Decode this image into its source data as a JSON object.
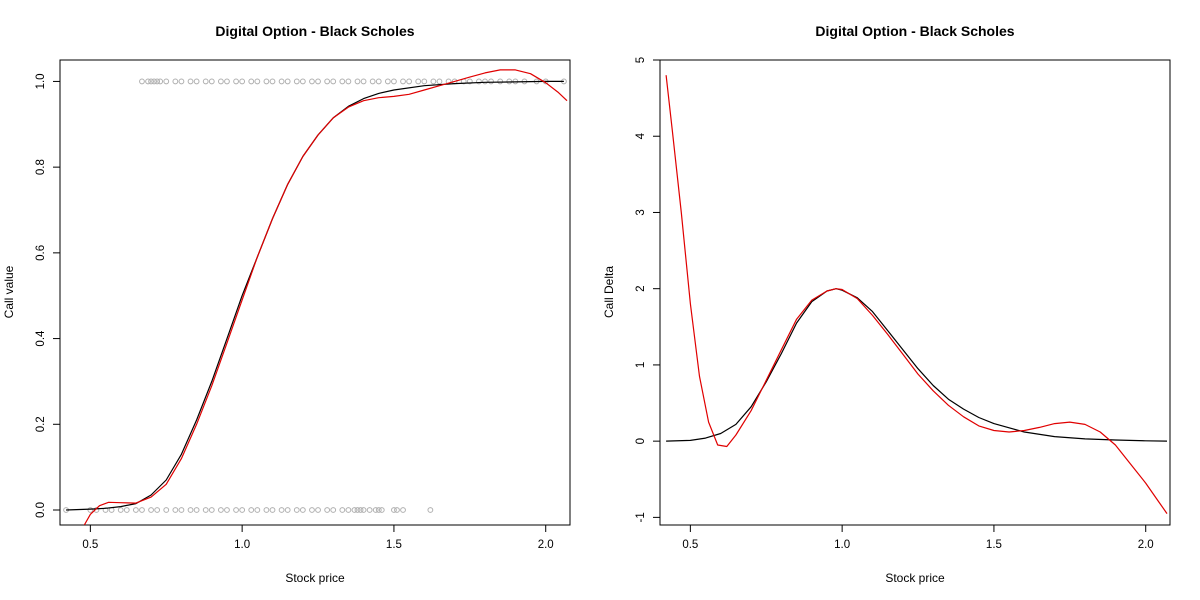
{
  "chart_data": [
    {
      "type": "scatter",
      "title": "Digital Option - Black Scholes",
      "xlabel": "Stock price",
      "ylabel": "Call value",
      "xlim": [
        0.4,
        2.08
      ],
      "ylim": [
        -0.035,
        1.05
      ],
      "xticks": [
        0.5,
        1.0,
        1.5,
        2.0
      ],
      "xtick_labels": [
        "0.5",
        "1.0",
        "1.5",
        "2.0"
      ],
      "yticks": [
        0.0,
        0.2,
        0.4,
        0.6,
        0.8,
        1.0
      ],
      "ytick_labels": [
        "0.0",
        "0.2",
        "0.4",
        "0.6",
        "0.8",
        "1.0"
      ],
      "grid": false,
      "colors": {
        "points": "#b0b0b0",
        "exact": "#000000",
        "fit": "#e00000"
      },
      "series": [
        {
          "kind": "points",
          "values": [
            [
              0.42,
              0
            ],
            [
              0.5,
              0
            ],
            [
              0.52,
              0
            ],
            [
              0.55,
              0
            ],
            [
              0.57,
              0
            ],
            [
              0.6,
              0
            ],
            [
              0.62,
              0
            ],
            [
              0.65,
              0
            ],
            [
              0.67,
              0
            ],
            [
              0.7,
              0
            ],
            [
              0.72,
              0
            ],
            [
              0.75,
              0
            ],
            [
              0.78,
              0
            ],
            [
              0.8,
              0
            ],
            [
              0.83,
              0
            ],
            [
              0.85,
              0
            ],
            [
              0.88,
              0
            ],
            [
              0.9,
              0
            ],
            [
              0.93,
              0
            ],
            [
              0.95,
              0
            ],
            [
              0.98,
              0
            ],
            [
              1.0,
              0
            ],
            [
              1.03,
              0
            ],
            [
              1.05,
              0
            ],
            [
              1.08,
              0
            ],
            [
              1.1,
              0
            ],
            [
              1.13,
              0
            ],
            [
              1.15,
              0
            ],
            [
              1.18,
              0
            ],
            [
              1.2,
              0
            ],
            [
              1.23,
              0
            ],
            [
              1.25,
              0
            ],
            [
              1.28,
              0
            ],
            [
              1.3,
              0
            ],
            [
              1.33,
              0
            ],
            [
              1.35,
              0
            ],
            [
              1.37,
              0
            ],
            [
              1.38,
              0
            ],
            [
              1.39,
              0
            ],
            [
              1.4,
              0
            ],
            [
              1.42,
              0
            ],
            [
              1.44,
              0
            ],
            [
              1.45,
              0
            ],
            [
              1.46,
              0
            ],
            [
              1.5,
              0
            ],
            [
              1.51,
              0
            ],
            [
              1.53,
              0
            ],
            [
              1.62,
              0
            ],
            [
              0.67,
              1
            ],
            [
              0.69,
              1
            ],
            [
              0.7,
              1
            ],
            [
              0.71,
              1
            ],
            [
              0.72,
              1
            ],
            [
              0.73,
              1
            ],
            [
              0.75,
              1
            ],
            [
              0.78,
              1
            ],
            [
              0.8,
              1
            ],
            [
              0.83,
              1
            ],
            [
              0.85,
              1
            ],
            [
              0.88,
              1
            ],
            [
              0.9,
              1
            ],
            [
              0.93,
              1
            ],
            [
              0.95,
              1
            ],
            [
              0.98,
              1
            ],
            [
              1.0,
              1
            ],
            [
              1.03,
              1
            ],
            [
              1.05,
              1
            ],
            [
              1.08,
              1
            ],
            [
              1.1,
              1
            ],
            [
              1.13,
              1
            ],
            [
              1.15,
              1
            ],
            [
              1.18,
              1
            ],
            [
              1.2,
              1
            ],
            [
              1.23,
              1
            ],
            [
              1.25,
              1
            ],
            [
              1.28,
              1
            ],
            [
              1.3,
              1
            ],
            [
              1.33,
              1
            ],
            [
              1.35,
              1
            ],
            [
              1.38,
              1
            ],
            [
              1.4,
              1
            ],
            [
              1.43,
              1
            ],
            [
              1.45,
              1
            ],
            [
              1.48,
              1
            ],
            [
              1.5,
              1
            ],
            [
              1.53,
              1
            ],
            [
              1.55,
              1
            ],
            [
              1.58,
              1
            ],
            [
              1.6,
              1
            ],
            [
              1.63,
              1
            ],
            [
              1.65,
              1
            ],
            [
              1.68,
              1
            ],
            [
              1.7,
              1
            ],
            [
              1.73,
              1
            ],
            [
              1.75,
              1
            ],
            [
              1.78,
              1
            ],
            [
              1.8,
              1
            ],
            [
              1.82,
              1
            ],
            [
              1.85,
              1
            ],
            [
              1.88,
              1
            ],
            [
              1.9,
              1
            ],
            [
              1.93,
              1
            ],
            [
              1.97,
              1
            ],
            [
              2.0,
              1
            ],
            [
              2.06,
              1
            ]
          ]
        },
        {
          "kind": "line",
          "values": [
            [
              0.42,
              0.0
            ],
            [
              0.5,
              0.002
            ],
            [
              0.55,
              0.004
            ],
            [
              0.6,
              0.008
            ],
            [
              0.65,
              0.015
            ],
            [
              0.7,
              0.035
            ],
            [
              0.75,
              0.07
            ],
            [
              0.8,
              0.13
            ],
            [
              0.85,
              0.21
            ],
            [
              0.9,
              0.3
            ],
            [
              0.95,
              0.4
            ],
            [
              1.0,
              0.5
            ],
            [
              1.05,
              0.59
            ],
            [
              1.1,
              0.68
            ],
            [
              1.15,
              0.76
            ],
            [
              1.2,
              0.825
            ],
            [
              1.25,
              0.875
            ],
            [
              1.3,
              0.915
            ],
            [
              1.35,
              0.942
            ],
            [
              1.4,
              0.96
            ],
            [
              1.45,
              0.972
            ],
            [
              1.5,
              0.98
            ],
            [
              1.6,
              0.99
            ],
            [
              1.7,
              0.995
            ],
            [
              1.8,
              0.998
            ],
            [
              1.9,
              0.999
            ],
            [
              2.0,
              1.0
            ],
            [
              2.06,
              1.0
            ]
          ]
        },
        {
          "kind": "line",
          "values": [
            [
              0.48,
              -0.035
            ],
            [
              0.5,
              -0.01
            ],
            [
              0.53,
              0.01
            ],
            [
              0.56,
              0.018
            ],
            [
              0.6,
              0.017
            ],
            [
              0.65,
              0.016
            ],
            [
              0.7,
              0.03
            ],
            [
              0.75,
              0.06
            ],
            [
              0.8,
              0.12
            ],
            [
              0.85,
              0.2
            ],
            [
              0.9,
              0.29
            ],
            [
              0.95,
              0.39
            ],
            [
              1.0,
              0.49
            ],
            [
              1.05,
              0.59
            ],
            [
              1.1,
              0.68
            ],
            [
              1.15,
              0.76
            ],
            [
              1.2,
              0.825
            ],
            [
              1.25,
              0.875
            ],
            [
              1.3,
              0.915
            ],
            [
              1.35,
              0.94
            ],
            [
              1.4,
              0.955
            ],
            [
              1.45,
              0.962
            ],
            [
              1.5,
              0.965
            ],
            [
              1.55,
              0.97
            ],
            [
              1.6,
              0.98
            ],
            [
              1.65,
              0.99
            ],
            [
              1.7,
              1.0
            ],
            [
              1.75,
              1.01
            ],
            [
              1.8,
              1.02
            ],
            [
              1.85,
              1.027
            ],
            [
              1.9,
              1.027
            ],
            [
              1.95,
              1.018
            ],
            [
              2.0,
              0.997
            ],
            [
              2.04,
              0.975
            ],
            [
              2.07,
              0.955
            ]
          ]
        }
      ]
    },
    {
      "type": "line",
      "title": "Digital Option - Black Scholes",
      "xlabel": "Stock price",
      "ylabel": "Call Delta",
      "xlim": [
        0.4,
        2.08
      ],
      "ylim": [
        -1.1,
        5.0
      ],
      "xticks": [
        0.5,
        1.0,
        1.5,
        2.0
      ],
      "xtick_labels": [
        "0.5",
        "1.0",
        "1.5",
        "2.0"
      ],
      "yticks": [
        -1,
        0,
        1,
        2,
        3,
        4,
        5
      ],
      "ytick_labels": [
        "-1",
        "0",
        "1",
        "2",
        "3",
        "4",
        "5"
      ],
      "grid": false,
      "colors": {
        "exact": "#000000",
        "fit": "#e00000"
      },
      "series": [
        {
          "kind": "line",
          "values": [
            [
              0.42,
              0.0
            ],
            [
              0.5,
              0.01
            ],
            [
              0.55,
              0.04
            ],
            [
              0.6,
              0.1
            ],
            [
              0.65,
              0.22
            ],
            [
              0.7,
              0.45
            ],
            [
              0.75,
              0.78
            ],
            [
              0.8,
              1.15
            ],
            [
              0.85,
              1.55
            ],
            [
              0.9,
              1.83
            ],
            [
              0.95,
              1.97
            ],
            [
              0.98,
              2.0
            ],
            [
              1.0,
              1.98
            ],
            [
              1.05,
              1.88
            ],
            [
              1.1,
              1.7
            ],
            [
              1.15,
              1.45
            ],
            [
              1.2,
              1.2
            ],
            [
              1.25,
              0.95
            ],
            [
              1.3,
              0.73
            ],
            [
              1.35,
              0.55
            ],
            [
              1.4,
              0.42
            ],
            [
              1.45,
              0.31
            ],
            [
              1.5,
              0.23
            ],
            [
              1.6,
              0.12
            ],
            [
              1.7,
              0.06
            ],
            [
              1.8,
              0.03
            ],
            [
              1.9,
              0.015
            ],
            [
              2.0,
              0.005
            ],
            [
              2.07,
              0.0
            ]
          ]
        },
        {
          "kind": "line",
          "values": [
            [
              0.42,
              4.8
            ],
            [
              0.44,
              4.1
            ],
            [
              0.47,
              3.0
            ],
            [
              0.5,
              1.8
            ],
            [
              0.53,
              0.85
            ],
            [
              0.56,
              0.25
            ],
            [
              0.59,
              -0.05
            ],
            [
              0.62,
              -0.07
            ],
            [
              0.65,
              0.08
            ],
            [
              0.7,
              0.4
            ],
            [
              0.75,
              0.8
            ],
            [
              0.8,
              1.2
            ],
            [
              0.85,
              1.6
            ],
            [
              0.9,
              1.85
            ],
            [
              0.95,
              1.97
            ],
            [
              0.98,
              2.0
            ],
            [
              1.0,
              1.99
            ],
            [
              1.05,
              1.87
            ],
            [
              1.1,
              1.65
            ],
            [
              1.15,
              1.4
            ],
            [
              1.2,
              1.14
            ],
            [
              1.25,
              0.88
            ],
            [
              1.3,
              0.66
            ],
            [
              1.35,
              0.47
            ],
            [
              1.4,
              0.32
            ],
            [
              1.45,
              0.2
            ],
            [
              1.5,
              0.14
            ],
            [
              1.55,
              0.12
            ],
            [
              1.6,
              0.14
            ],
            [
              1.65,
              0.18
            ],
            [
              1.7,
              0.23
            ],
            [
              1.75,
              0.25
            ],
            [
              1.8,
              0.22
            ],
            [
              1.85,
              0.12
            ],
            [
              1.9,
              -0.05
            ],
            [
              1.95,
              -0.3
            ],
            [
              2.0,
              -0.55
            ],
            [
              2.04,
              -0.78
            ],
            [
              2.07,
              -0.95
            ]
          ]
        }
      ]
    }
  ]
}
